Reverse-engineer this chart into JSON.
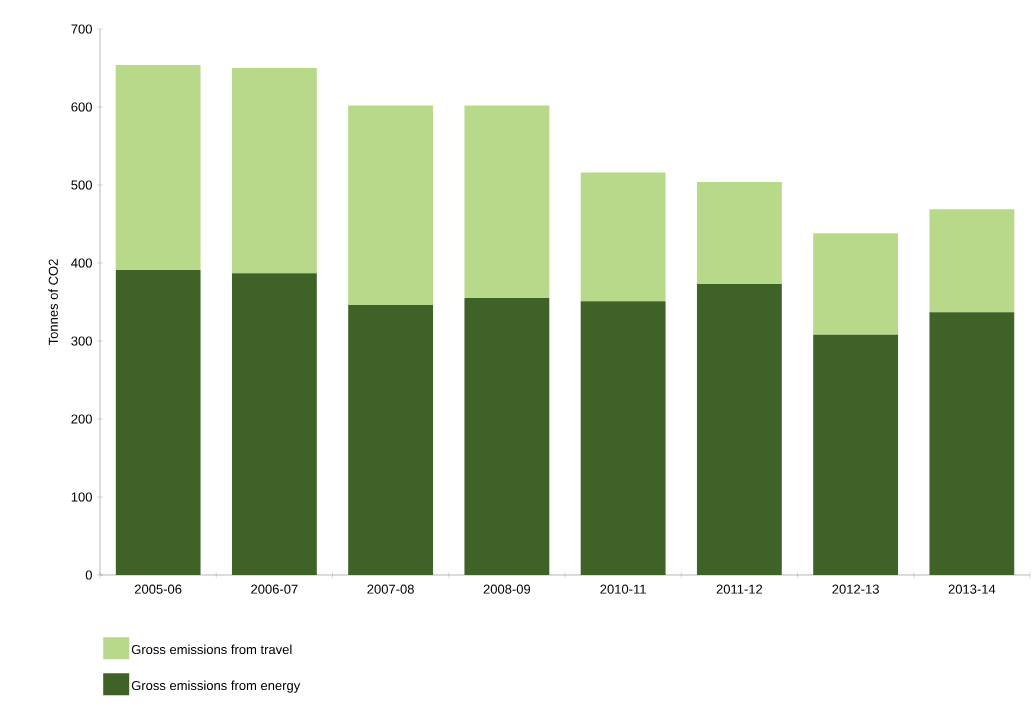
{
  "chart_data": {
    "type": "bar",
    "stacked": true,
    "ylabel": "Tonnes of CO2",
    "categories": [
      "2005-06",
      "2006-07",
      "2007-08",
      "2008-09",
      "2010-11",
      "2011-12",
      "2012-13",
      "2013-14"
    ],
    "series": [
      {
        "name": "Gross emissions from energy",
        "color": "#3f6226",
        "values": [
          391,
          387,
          346,
          355,
          351,
          373,
          308,
          337
        ]
      },
      {
        "name": "Gross emissions from travel",
        "color": "#b9d98a",
        "values": [
          263,
          263,
          256,
          247,
          165,
          131,
          130,
          132
        ]
      }
    ],
    "ylim": [
      0,
      700
    ],
    "yticks": [
      0,
      100,
      200,
      300,
      400,
      500,
      600,
      700
    ],
    "grid": false,
    "legend": "bottom left"
  }
}
